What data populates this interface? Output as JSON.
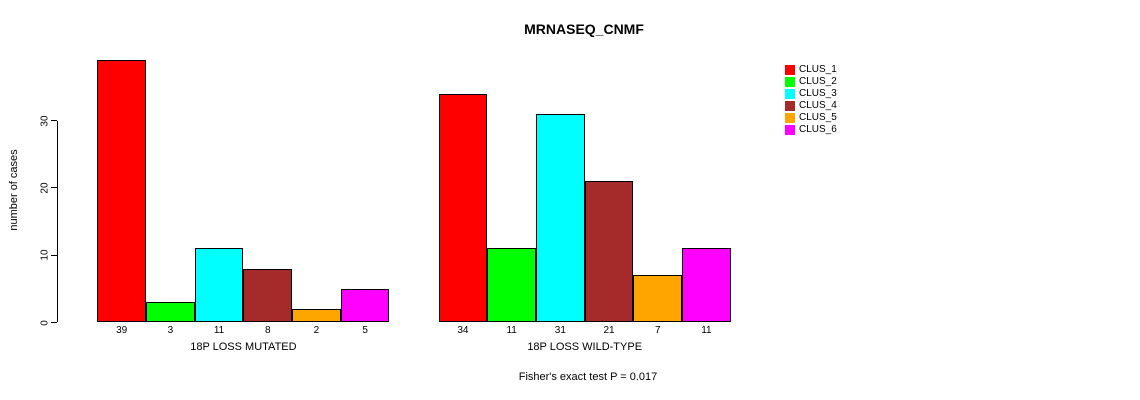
{
  "title": "MRNASEQ_CNMF",
  "chart_data": {
    "type": "bar",
    "title": "MRNASEQ_CNMF",
    "ylabel": "number of cases",
    "ylim": [
      0,
      39
    ],
    "yticks": [
      0,
      10,
      20,
      30
    ],
    "grid": false,
    "legend_position": "right",
    "categories": [
      "18P LOSS MUTATED",
      "18P LOSS WILD-TYPE"
    ],
    "series": [
      {
        "name": "CLUS_1",
        "color": "#FF0000",
        "values": [
          39,
          34
        ]
      },
      {
        "name": "CLUS_2",
        "color": "#00FF00",
        "values": [
          3,
          11
        ]
      },
      {
        "name": "CLUS_3",
        "color": "#00FFFF",
        "values": [
          11,
          31
        ]
      },
      {
        "name": "CLUS_4",
        "color": "#A52A2A",
        "values": [
          8,
          21
        ]
      },
      {
        "name": "CLUS_5",
        "color": "#FFA500",
        "values": [
          2,
          7
        ]
      },
      {
        "name": "CLUS_6",
        "color": "#FF00FF",
        "values": [
          5,
          11
        ]
      }
    ],
    "bar_value_labels": [
      [
        39,
        3,
        11,
        8,
        2,
        5
      ],
      [
        34,
        11,
        31,
        21,
        7,
        11
      ]
    ],
    "annotation": "Fisher's exact test P = 0.017"
  }
}
